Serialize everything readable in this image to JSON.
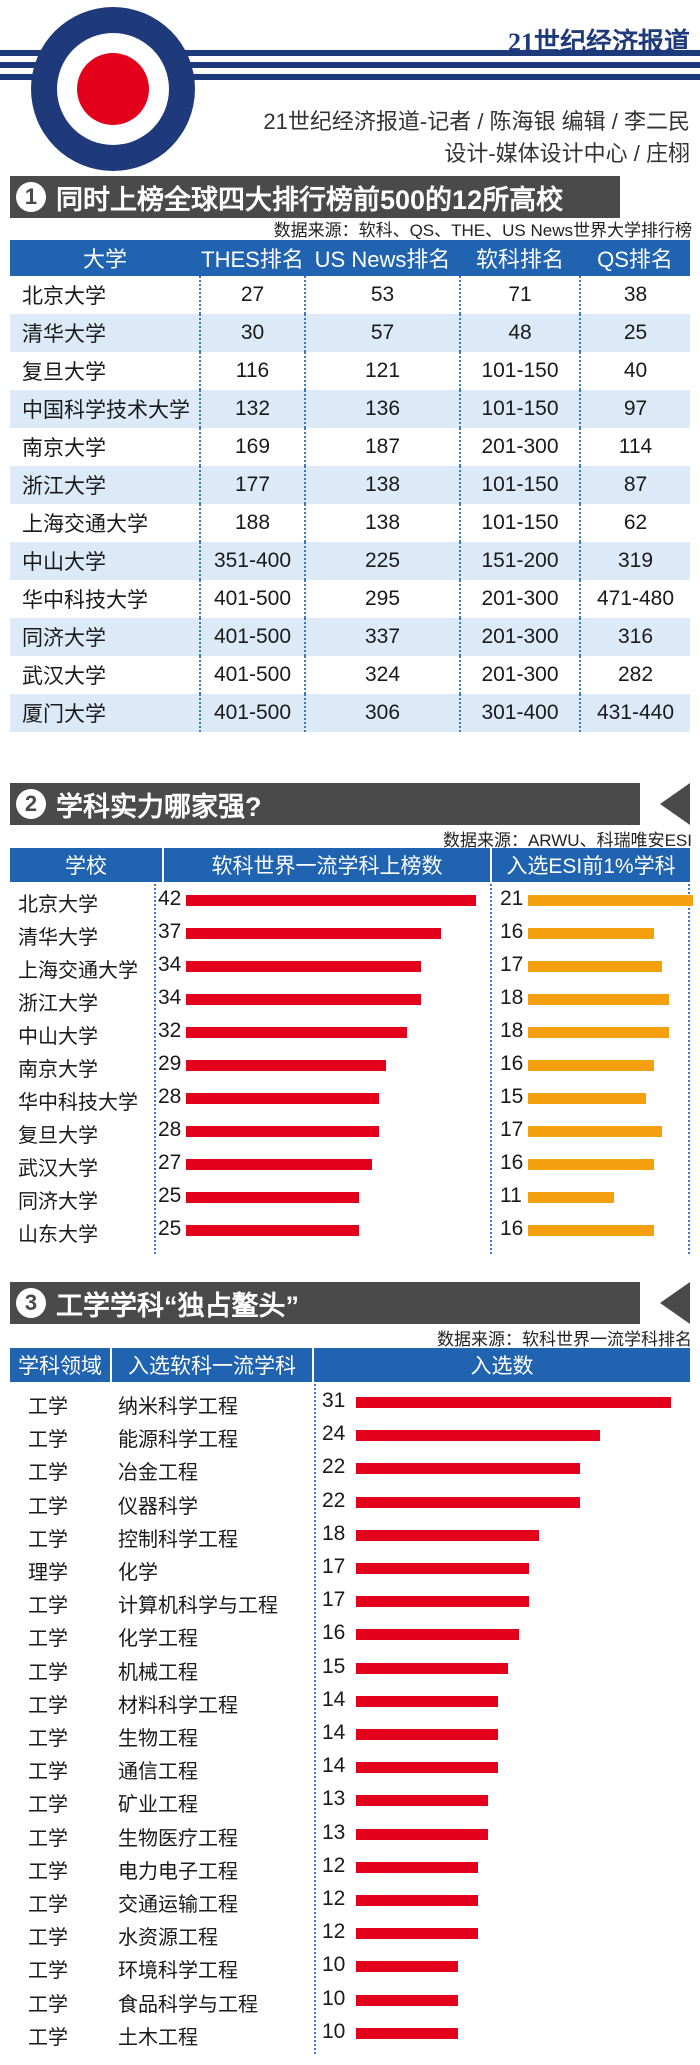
{
  "header": {
    "brand": "21世纪经济报道",
    "credit_line1": "21世纪经济报道-记者 / 陈海银    编辑 / 李二民",
    "credit_line2": "设计-媒体设计中心 / 庄栩",
    "colors": {
      "navy": "#1f3a7a",
      "red": "#e3001b"
    }
  },
  "section1": {
    "number": "1",
    "title": "同时上榜全球四大排行榜前500的12所高校",
    "source": "数据来源：软科、QS、THE、US News世界大学排行榜",
    "columns": [
      "大学",
      "THES排名",
      "US News排名",
      "软科排名",
      "QS排名"
    ]
  },
  "section2": {
    "number": "2",
    "title": "学科实力哪家强?",
    "source": "数据来源：ARWU、科瑞唯安ESI",
    "columns": [
      "学校",
      "软科世界一流学科上榜数",
      "入选ESI前1%学科"
    ],
    "colors": {
      "left_bar": "#e3001b",
      "right_bar": "#f5a00f"
    }
  },
  "section3": {
    "number": "3",
    "title": "工学学科“独占鳌头”",
    "source": "数据来源：软科世界一流学科排名",
    "columns": [
      "学科领域",
      "入选软科一流学科",
      "入选数"
    ],
    "colors": {
      "bar": "#e3001b"
    }
  },
  "chart_data": [
    {
      "type": "table",
      "title": "同时上榜全球四大排行榜前500的12所高校",
      "columns": [
        "大学",
        "THES排名",
        "US News排名",
        "软科排名",
        "QS排名"
      ],
      "rows": [
        [
          "北京大学",
          "27",
          "53",
          "71",
          "38"
        ],
        [
          "清华大学",
          "30",
          "57",
          "48",
          "25"
        ],
        [
          "复旦大学",
          "116",
          "121",
          "101-150",
          "40"
        ],
        [
          "中国科学技术大学",
          "132",
          "136",
          "101-150",
          "97"
        ],
        [
          "南京大学",
          "169",
          "187",
          "201-300",
          "114"
        ],
        [
          "浙江大学",
          "177",
          "138",
          "101-150",
          "87"
        ],
        [
          "上海交通大学",
          "188",
          "138",
          "101-150",
          "62"
        ],
        [
          "中山大学",
          "351-400",
          "225",
          "151-200",
          "319"
        ],
        [
          "华中科技大学",
          "401-500",
          "295",
          "201-300",
          "471-480"
        ],
        [
          "同济大学",
          "401-500",
          "337",
          "201-300",
          "316"
        ],
        [
          "武汉大学",
          "401-500",
          "324",
          "201-300",
          "282"
        ],
        [
          "厦门大学",
          "401-500",
          "306",
          "301-400",
          "431-440"
        ]
      ]
    },
    {
      "type": "bar",
      "title": "学科实力哪家强?",
      "categories": [
        "北京大学",
        "清华大学",
        "上海交通大学",
        "浙江大学",
        "中山大学",
        "南京大学",
        "华中科技大学",
        "复旦大学",
        "武汉大学",
        "同济大学",
        "山东大学"
      ],
      "series": [
        {
          "name": "软科世界一流学科上榜数",
          "values": [
            42,
            37,
            34,
            34,
            32,
            29,
            28,
            28,
            27,
            25,
            25
          ]
        },
        {
          "name": "入选ESI前1%学科",
          "values": [
            21,
            16,
            17,
            18,
            18,
            16,
            15,
            17,
            16,
            11,
            16
          ]
        }
      ]
    },
    {
      "type": "bar",
      "title": "工学学科“独占鳌头”",
      "fields": [
        "工学",
        "工学",
        "工学",
        "工学",
        "工学",
        "理学",
        "工学",
        "工学",
        "工学",
        "工学",
        "工学",
        "工学",
        "工学",
        "工学",
        "工学",
        "工学",
        "工学",
        "工学",
        "工学",
        "工学"
      ],
      "categories": [
        "纳米科学工程",
        "能源科学工程",
        "冶金工程",
        "仪器科学",
        "控制科学工程",
        "化学",
        "计算机科学与工程",
        "化学工程",
        "机械工程",
        "材料科学工程",
        "生物工程",
        "通信工程",
        "矿业工程",
        "生物医疗工程",
        "电力电子工程",
        "交通运输工程",
        "水资源工程",
        "环境科学工程",
        "食品科学与工程",
        "土木工程"
      ],
      "values": [
        31,
        24,
        22,
        22,
        18,
        17,
        17,
        16,
        15,
        14,
        14,
        14,
        13,
        13,
        12,
        12,
        12,
        10,
        10,
        10
      ]
    }
  ]
}
